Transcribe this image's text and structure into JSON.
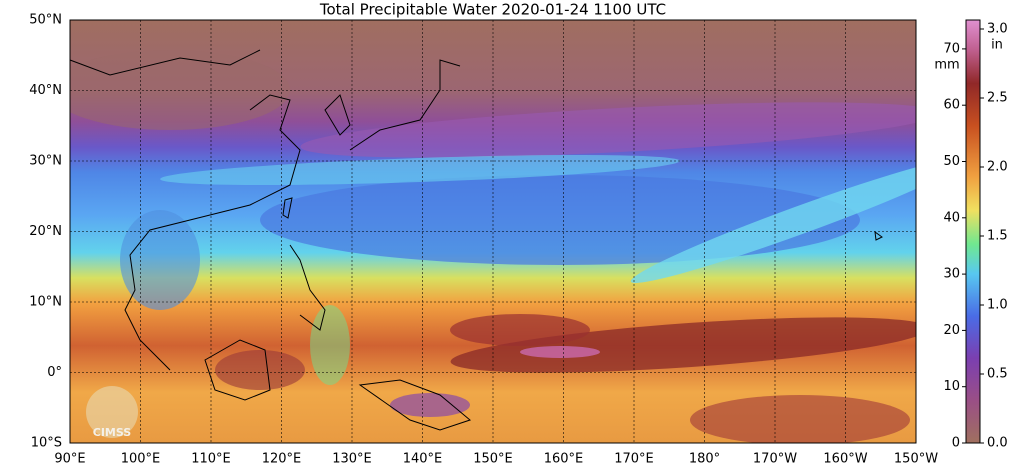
{
  "header": {
    "title": "Total Precipitable Water  2020-01-24 1100 UTC"
  },
  "map": {
    "lat_labels": [
      "50°N",
      "40°N",
      "30°N",
      "20°N",
      "10°N",
      "0°",
      "10°S"
    ],
    "lon_labels": [
      "90°E",
      "100°E",
      "110°E",
      "120°E",
      "130°E",
      "140°E",
      "150°E",
      "160°E",
      "170°E",
      "180°",
      "170°W",
      "160°W",
      "150°W"
    ],
    "logo": "CIMSS"
  },
  "colorbar": {
    "mm_unit": "mm",
    "in_unit": "in",
    "mm_ticks": [
      0,
      10,
      20,
      30,
      40,
      50,
      60,
      70
    ],
    "in_ticks": [
      "0.0",
      "0.5",
      "1.0",
      "1.5",
      "2.0",
      "2.5",
      "3.0"
    ]
  }
}
